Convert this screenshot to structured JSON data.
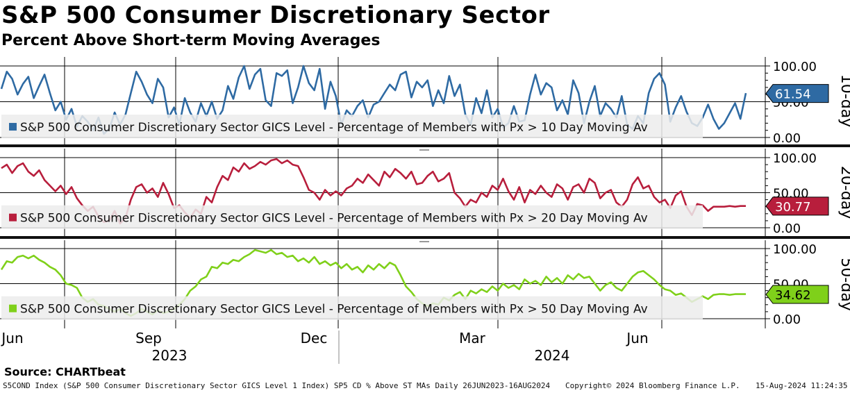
{
  "title": "S&P 500 Consumer Discretionary Sector",
  "subtitle": "Percent Above Short-term Moving Averages",
  "source": "Source: CHARTbeat",
  "footer": {
    "description": "S5COND Index (S&P 500 Consumer Discretionary Sector GICS Level 1 Index) SP5 CD % Above ST MAs  Daily 26JUN2023-16AUG2024",
    "copyright": "Copyright© 2024 Bloomberg Finance L.P.",
    "timestamp": "15-Aug-2024 11:24:35"
  },
  "colors": {
    "series_10": "#2e6aa3",
    "series_20": "#b81e3c",
    "series_50": "#7fd01a",
    "legend_bg": "#ececec",
    "grid": "#000000"
  },
  "chart_data": [
    {
      "type": "line",
      "panel_label": "10-day",
      "legend": "S&P 500 Consumer Discretionary Sector GICS Level - Percentage of Members with Px > 10 Day Moving Av",
      "last_value": "61.54",
      "ylim": [
        0,
        100
      ],
      "y_ticks": [
        "100.00",
        "50.00",
        "0.00"
      ],
      "values": [
        68,
        92,
        82,
        60,
        75,
        85,
        55,
        72,
        88,
        62,
        38,
        50,
        25,
        40,
        15,
        30,
        22,
        10,
        28,
        5,
        12,
        35,
        18,
        32,
        62,
        92,
        78,
        60,
        48,
        82,
        70,
        28,
        42,
        18,
        55,
        35,
        22,
        48,
        30,
        50,
        26,
        38,
        72,
        54,
        84,
        100,
        68,
        88,
        96,
        52,
        44,
        90,
        86,
        94,
        48,
        70,
        100,
        76,
        66,
        96,
        40,
        78,
        58,
        18,
        38,
        30,
        44,
        52,
        28,
        46,
        50,
        62,
        74,
        66,
        88,
        92,
        56,
        78,
        70,
        80,
        44,
        66,
        48,
        86,
        58,
        74,
        32,
        18,
        55,
        34,
        66,
        28,
        40,
        14,
        20,
        44,
        22,
        24,
        60,
        88,
        60,
        76,
        70,
        38,
        52,
        32,
        80,
        62,
        20,
        50,
        72,
        30,
        48,
        40,
        28,
        58,
        18,
        12,
        30,
        20,
        62,
        82,
        90,
        74,
        22,
        42,
        58,
        36,
        20,
        16,
        28,
        46,
        26,
        12,
        20,
        34,
        48,
        26,
        62
      ],
      "x_ticks": [
        "Jun",
        "Sep",
        "Dec",
        "Mar",
        "Jun"
      ],
      "year_labels": [
        "2023",
        "2024"
      ]
    },
    {
      "type": "line",
      "panel_label": "20-day",
      "legend": "S&P 500 Consumer Discretionary Sector GICS Level - Percentage of Members with Px > 20 Day Moving Av",
      "last_value": "30.77",
      "ylim": [
        0,
        100
      ],
      "y_ticks": [
        "100.00",
        "50.00",
        "0.00"
      ],
      "values": [
        85,
        90,
        78,
        88,
        92,
        80,
        74,
        82,
        68,
        60,
        52,
        60,
        48,
        58,
        42,
        32,
        24,
        30,
        16,
        8,
        10,
        24,
        6,
        14,
        40,
        58,
        62,
        50,
        56,
        44,
        64,
        48,
        28,
        32,
        22,
        14,
        26,
        20,
        44,
        36,
        58,
        74,
        68,
        86,
        80,
        92,
        84,
        88,
        94,
        90,
        96,
        98,
        92,
        96,
        90,
        88,
        72,
        54,
        50,
        40,
        54,
        46,
        52,
        46,
        56,
        60,
        70,
        64,
        76,
        68,
        60,
        80,
        72,
        84,
        78,
        70,
        80,
        62,
        64,
        74,
        80,
        66,
        70,
        78,
        50,
        42,
        30,
        40,
        36,
        50,
        44,
        60,
        54,
        70,
        52,
        40,
        58,
        36,
        54,
        48,
        60,
        50,
        44,
        62,
        56,
        40,
        58,
        62,
        50,
        70,
        64,
        42,
        50,
        54,
        36,
        30,
        40,
        62,
        72,
        56,
        60,
        44,
        36,
        40,
        28,
        46,
        52,
        30,
        18,
        34,
        32,
        24,
        30,
        30,
        30,
        31,
        30,
        31,
        31
      ],
      "x_ticks": [
        "Jun",
        "Sep",
        "Dec",
        "Mar",
        "Jun"
      ],
      "year_labels": [
        "2023",
        "2024"
      ]
    },
    {
      "type": "line",
      "panel_label": "50-day",
      "legend": "S&P 500 Consumer Discretionary Sector GICS Level - Percentage of Members with Px > 50 Day Moving Av",
      "last_value": "34.62",
      "ylim": [
        0,
        100
      ],
      "y_ticks": [
        "100.00",
        "50.00",
        "0.00"
      ],
      "values": [
        70,
        82,
        80,
        88,
        90,
        86,
        90,
        84,
        80,
        74,
        70,
        62,
        50,
        48,
        44,
        30,
        24,
        28,
        20,
        18,
        14,
        10,
        14,
        8,
        4,
        8,
        14,
        10,
        6,
        12,
        8,
        10,
        14,
        20,
        28,
        40,
        46,
        56,
        60,
        74,
        72,
        80,
        78,
        84,
        82,
        88,
        92,
        98,
        96,
        94,
        98,
        92,
        94,
        88,
        90,
        82,
        86,
        80,
        88,
        78,
        82,
        76,
        80,
        72,
        78,
        70,
        74,
        66,
        76,
        70,
        78,
        72,
        80,
        76,
        62,
        46,
        38,
        28,
        22,
        18,
        22,
        20,
        30,
        26,
        34,
        38,
        28,
        40,
        36,
        42,
        38,
        46,
        40,
        50,
        44,
        48,
        42,
        56,
        50,
        54,
        48,
        60,
        52,
        58,
        50,
        62,
        56,
        64,
        58,
        60,
        50,
        40,
        48,
        52,
        44,
        40,
        50,
        60,
        66,
        68,
        62,
        56,
        48,
        42,
        40,
        34,
        36,
        30,
        24,
        28,
        32,
        28,
        34,
        35,
        35,
        34,
        35,
        35,
        35
      ],
      "x_ticks": [
        "Jun",
        "Sep",
        "Dec",
        "Mar",
        "Jun"
      ],
      "year_labels": [
        "2023",
        "2024"
      ]
    }
  ]
}
